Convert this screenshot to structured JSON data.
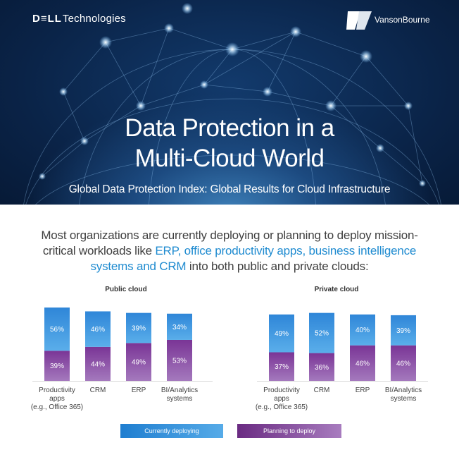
{
  "header": {
    "brand_bold": "D≡LL",
    "brand_rest": "Technologies",
    "partner": "VansonBourne",
    "title_line1": "Data Protection in a",
    "title_line2": "Multi-Cloud World",
    "subtitle": "Global Data Protection Index: Global Results for Cloud Infrastructure"
  },
  "intro": {
    "part1": "Most organizations are currently deploying or planning to deploy mission-critical workloads like ",
    "highlight": "ERP, office productivity apps, business intelligence systems and CRM",
    "part2": " into both public and private clouds:"
  },
  "legend": {
    "current": "Currently deploying",
    "planning": "Planning to deploy"
  },
  "colors": {
    "current": "#3f9ae0",
    "planning": "#8a4aa6"
  },
  "chart_data": [
    {
      "type": "bar",
      "stacked": true,
      "title": "Public cloud",
      "categories": [
        "Productivity apps (e.g., Office 365)",
        "CRM",
        "ERP",
        "BI/Analytics systems"
      ],
      "category_lines": [
        [
          "Productivity",
          "apps",
          "(e.g., Office 365)"
        ],
        [
          "CRM"
        ],
        [
          "ERP"
        ],
        [
          "BI/Analytics",
          "systems"
        ]
      ],
      "series": [
        {
          "name": "Planning to deploy",
          "values": [
            39,
            44,
            49,
            53
          ]
        },
        {
          "name": "Currently deploying",
          "values": [
            56,
            46,
            39,
            34
          ]
        }
      ],
      "unit": "%",
      "ylim": [
        0,
        100
      ]
    },
    {
      "type": "bar",
      "stacked": true,
      "title": "Private cloud",
      "categories": [
        "Productivity apps (e.g., Office 365)",
        "CRM",
        "ERP",
        "BI/Analytics systems"
      ],
      "category_lines": [
        [
          "Productivity",
          "apps",
          "(e.g., Office 365)"
        ],
        [
          "CRM"
        ],
        [
          "ERP"
        ],
        [
          "BI/Analytics",
          "systems"
        ]
      ],
      "series": [
        {
          "name": "Planning to deploy",
          "values": [
            37,
            36,
            46,
            46
          ]
        },
        {
          "name": "Currently deploying",
          "values": [
            49,
            52,
            40,
            39
          ]
        }
      ],
      "unit": "%",
      "ylim": [
        0,
        100
      ]
    }
  ]
}
